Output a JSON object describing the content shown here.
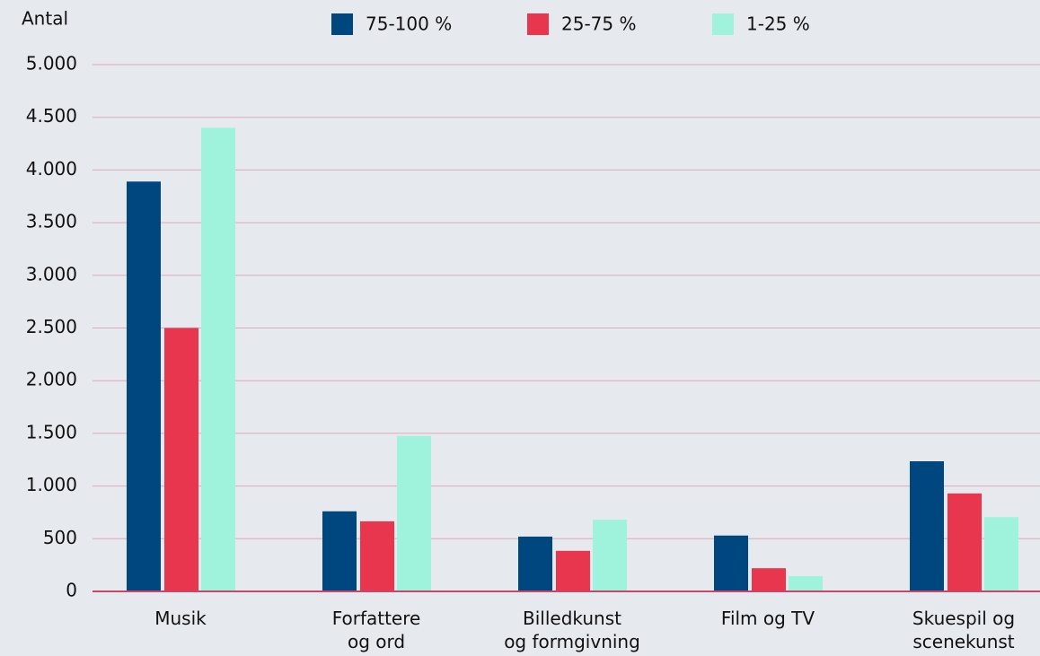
{
  "chart_data": {
    "type": "bar",
    "y_label": "Antal",
    "categories": [
      "Musik",
      "Forfattere\nog ord",
      "Billedkunst\nog formgivning",
      "Film og TV",
      "Skuespil og\nscenekunst"
    ],
    "series": [
      {
        "name": "75-100 %",
        "color": "#00467f",
        "values": [
          3890,
          760,
          520,
          530,
          1235
        ]
      },
      {
        "name": "25-75 %",
        "color": "#e8364f",
        "values": [
          2500,
          665,
          385,
          220,
          930
        ]
      },
      {
        "name": "1-25 %",
        "color": "#9ff2dc",
        "values": [
          4400,
          1475,
          680,
          145,
          705
        ]
      }
    ],
    "ylim": [
      0,
      5000
    ],
    "yticks": [
      0,
      500,
      {
        "value": 1000,
        "label": "1.000"
      },
      {
        "value": 1500,
        "label": "1.500"
      },
      {
        "value": 2000,
        "label": "2.000"
      },
      {
        "value": 2500,
        "label": "2.500"
      },
      {
        "value": 3000,
        "label": "3.000"
      },
      {
        "value": 3500,
        "label": "3.500"
      },
      {
        "value": 4000,
        "label": "4.000"
      },
      {
        "value": 4500,
        "label": "4.500"
      },
      {
        "value": 5000,
        "label": "5.000"
      }
    ],
    "grid": true
  }
}
